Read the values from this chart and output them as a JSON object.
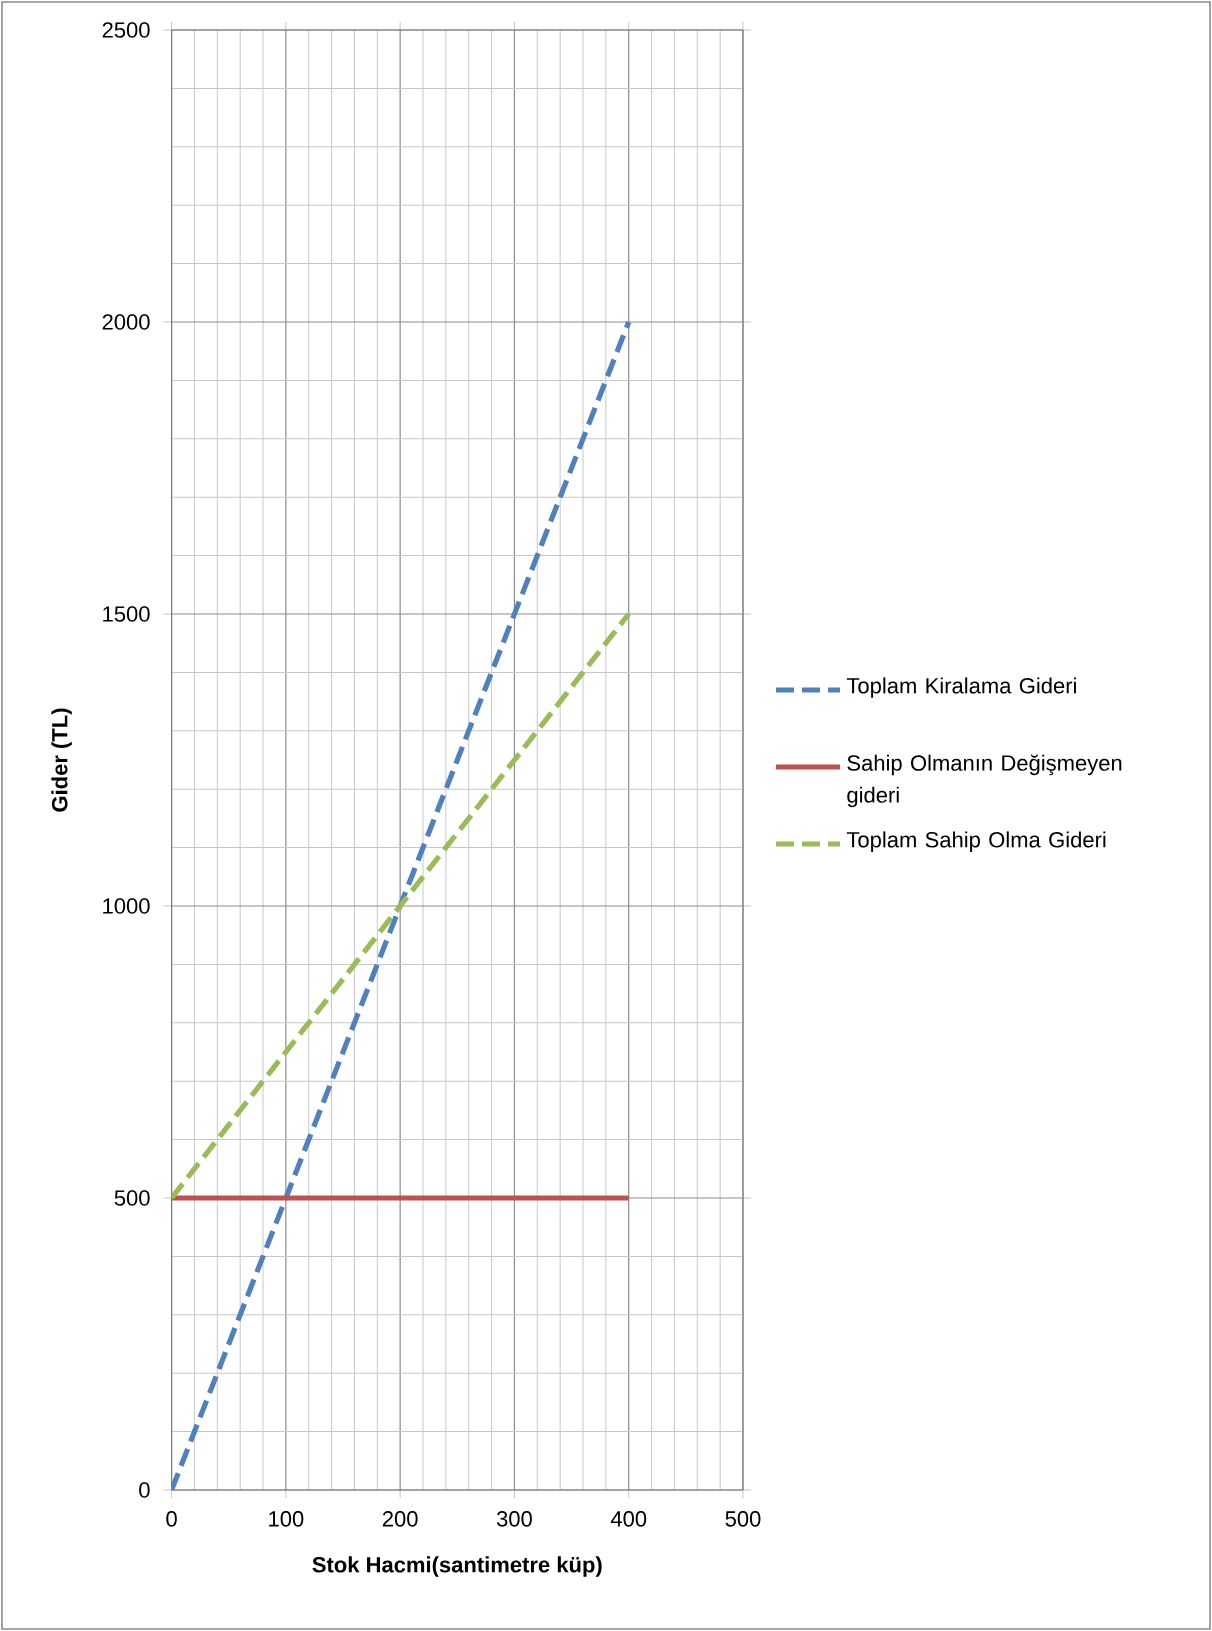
{
  "chart_data": {
    "type": "line",
    "xlabel": "Stok Hacmi(santimetre küp)",
    "ylabel": "Gider (TL)",
    "x": [
      0,
      400
    ],
    "series": [
      {
        "name": "Toplam Kiralama Gideri",
        "color": "#4f81bd",
        "values": [
          0,
          2000
        ],
        "line_style": "dashed"
      },
      {
        "name": "Sahip Olmanın Değişmeyen gideri",
        "color": "#c0504d",
        "values": [
          500,
          500
        ],
        "line_style": "solid"
      },
      {
        "name": "Toplam Sahip Olma Gideri",
        "color": "#9bbb59",
        "values": [
          500,
          1500
        ],
        "line_style": "dashed"
      }
    ],
    "xlim": [
      0,
      500
    ],
    "xticks": [
      0,
      100,
      200,
      300,
      400,
      500
    ],
    "ylim": [
      0,
      2500
    ],
    "yticks": [
      0,
      500,
      1000,
      1500,
      2000,
      2500
    ],
    "grid": true,
    "legend": "right",
    "marker": "none"
  }
}
